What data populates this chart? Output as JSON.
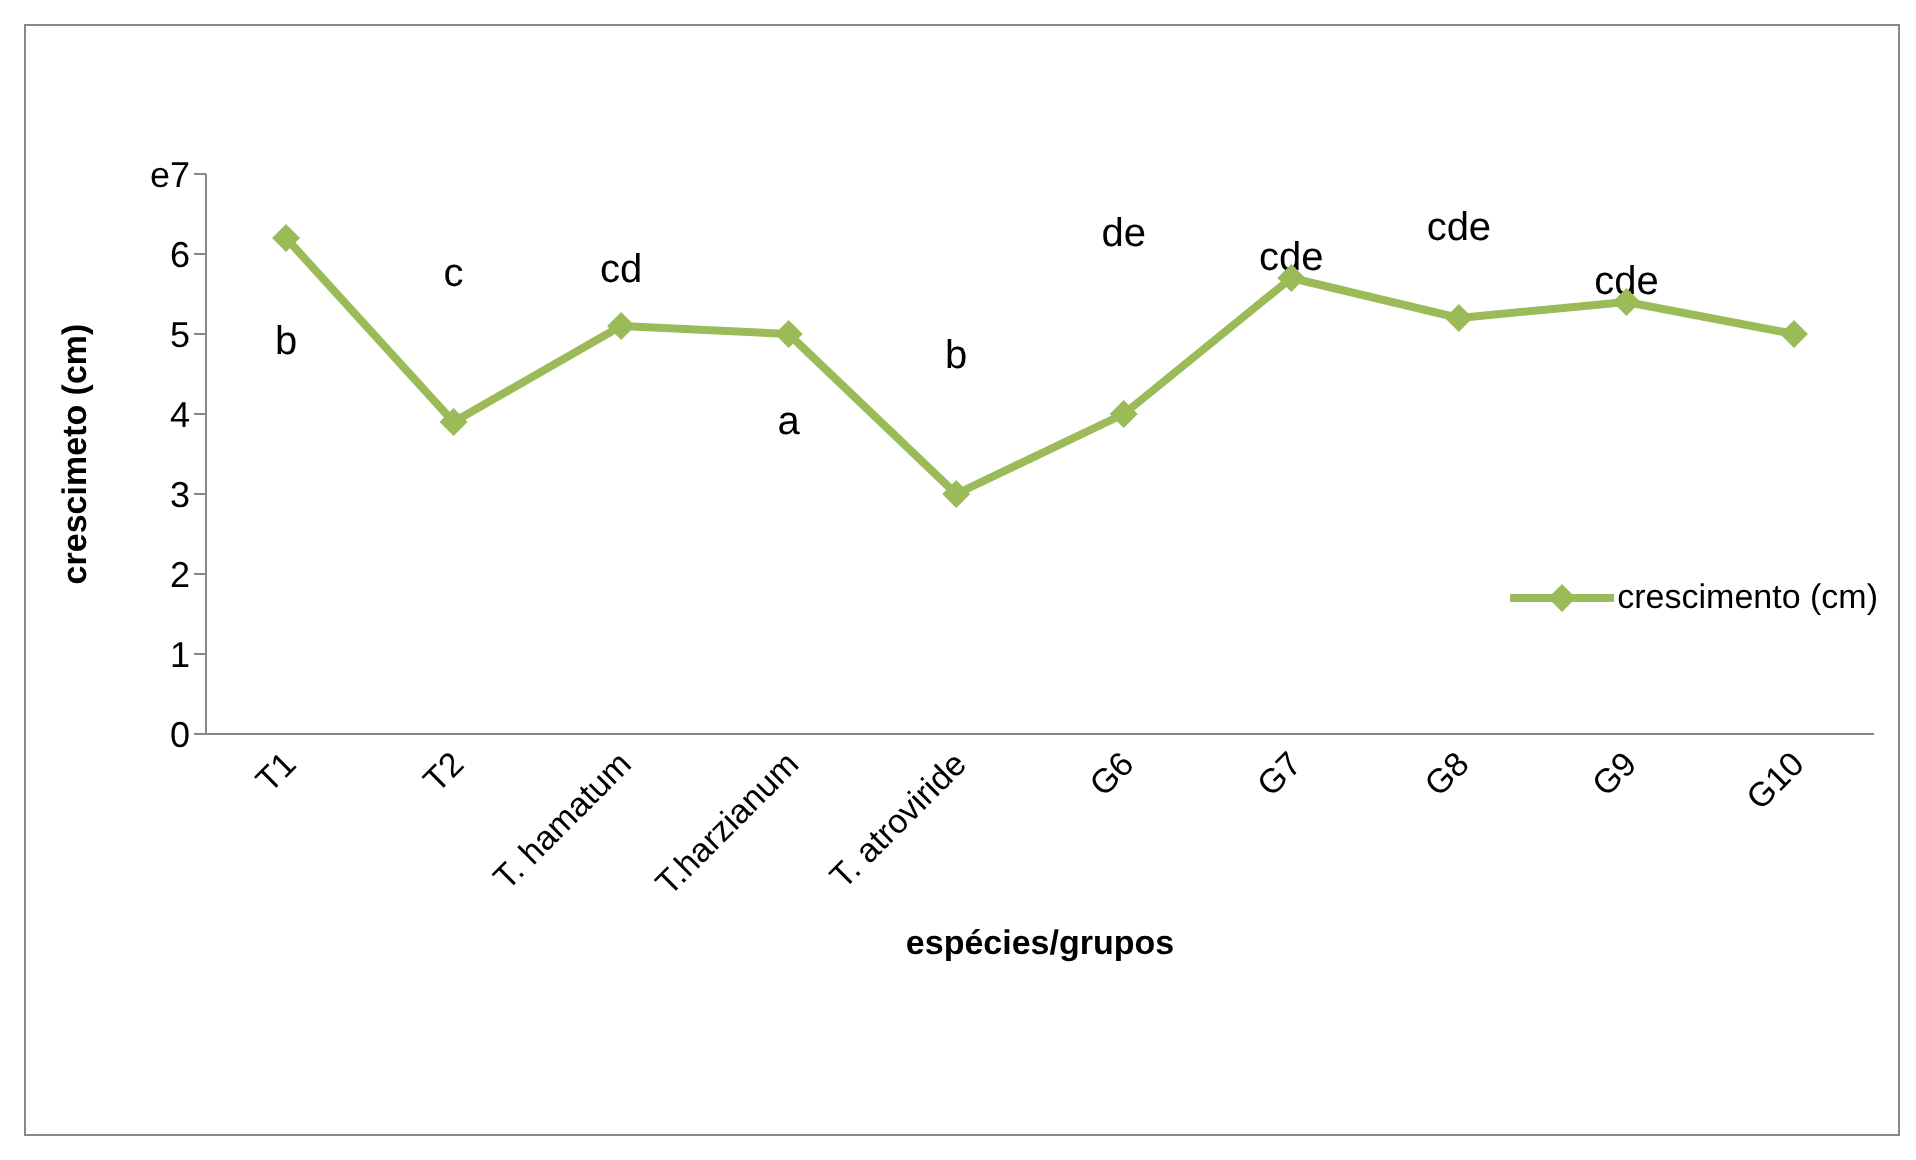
{
  "chart_data": {
    "type": "line",
    "categories": [
      "T1",
      "T2",
      "T. hamatum",
      "T.harzianum",
      "T. atroviride",
      "G6",
      "G7",
      "G8",
      "G9",
      "G10"
    ],
    "series": [
      {
        "name": "crescimento (cm)",
        "color": "#9bbb59",
        "values": [
          6.2,
          3.9,
          5.1,
          5.0,
          3.0,
          4.0,
          5.7,
          5.2,
          5.4,
          5.0
        ]
      }
    ],
    "xlabel": "espécies/grupos",
    "ylabel": "crescimeto (cm)",
    "ylim": [
      0,
      7
    ],
    "yticks": [
      0,
      1,
      2,
      3,
      4,
      5,
      6,
      {
        "value": 7,
        "label": "e7"
      }
    ],
    "marker": "diamond",
    "legend": "right",
    "grid": false,
    "annotations": [
      "b",
      "c",
      "cd",
      "a",
      "b",
      "de",
      "cde",
      "cde",
      "cde"
    ]
  }
}
